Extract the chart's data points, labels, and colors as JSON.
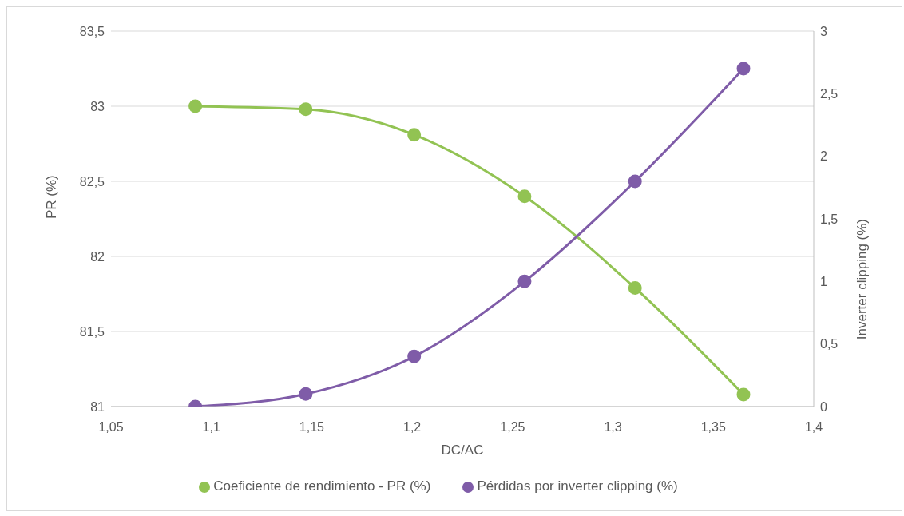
{
  "chart_data": {
    "type": "line",
    "xlabel": "DC/AC",
    "ylabel": "PR (%)",
    "y2label": "Inverter clipping (%)",
    "x": [
      1.092,
      1.147,
      1.201,
      1.256,
      1.311,
      1.365
    ],
    "series": [
      {
        "name": "Coeficiente de rendimiento - PR (%)",
        "color": "#92c353",
        "values": [
          83.0,
          82.98,
          82.81,
          82.4,
          81.79,
          81.08
        ]
      },
      {
        "name": "Pérdidas por inverter clipping (%)",
        "color": "#7f5ca8",
        "values": [
          0,
          0.1,
          0.4,
          1.0,
          1.8,
          2.7
        ],
        "axis": "y2"
      }
    ],
    "xlim": [
      1.05,
      1.4
    ],
    "xticks": [
      {
        "value": 1.05,
        "label": "1,05"
      },
      {
        "value": 1.1,
        "label": "1,1"
      },
      {
        "value": 1.15,
        "label": "1,15"
      },
      {
        "value": 1.2,
        "label": "1,2"
      },
      {
        "value": 1.25,
        "label": "1,25"
      },
      {
        "value": 1.3,
        "label": "1,3"
      },
      {
        "value": 1.35,
        "label": "1,35"
      },
      {
        "value": 1.4,
        "label": "1,4"
      }
    ],
    "ylim": [
      81,
      83.5
    ],
    "yticks": [
      81,
      {
        "value": 81.5,
        "label": "81,5"
      },
      82,
      {
        "value": 82.5,
        "label": "82,5"
      },
      83,
      {
        "value": 83.5,
        "label": "83,5"
      }
    ],
    "y2lim": [
      0,
      3
    ],
    "y2ticks": [
      0,
      {
        "value": 0.5,
        "label": "0,5"
      },
      1,
      {
        "value": 1.5,
        "label": "1,5"
      },
      2,
      {
        "value": 2.5,
        "label": "2,5"
      },
      3
    ],
    "grid": "y",
    "legend": "bottom",
    "marker": "circle",
    "line_style": "solid"
  }
}
